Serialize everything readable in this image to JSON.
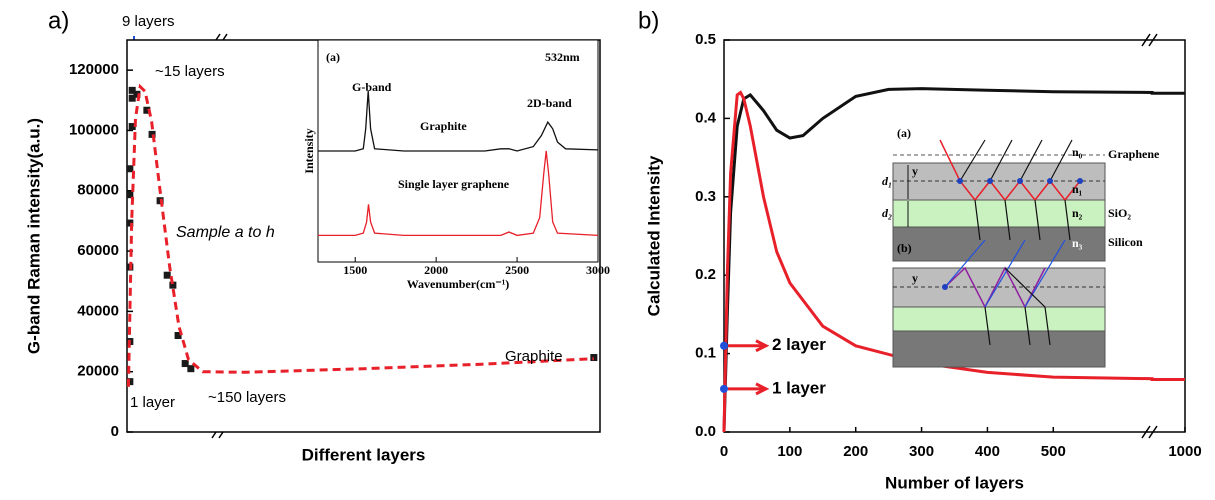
{
  "chart_data": [
    {
      "type": "scatter",
      "panel_label": "a)",
      "ylabel": "G-band Raman intensity(a.u.)",
      "xlabel": "Different layers",
      "xlim": [
        0,
        100
      ],
      "ylim": [
        0,
        130000
      ],
      "yticks": [
        0,
        20000,
        40000,
        60000,
        80000,
        100000,
        120000
      ],
      "series": [
        {
          "mode": "markers",
          "color": "#1a1a1a",
          "x": [
            0.6,
            0.6,
            0.6,
            0.6,
            0.6,
            0.6,
            1.1,
            1.1,
            1.1,
            2.1,
            4.2,
            5.3,
            7.0,
            8.5,
            9.7,
            10.8,
            12.3,
            13.5,
            98.7
          ],
          "values": [
            16700,
            30000,
            54700,
            69300,
            78700,
            87300,
            101300,
            110700,
            113300,
            112000,
            106700,
            98700,
            76700,
            52000,
            48700,
            32000,
            22700,
            21000,
            24700
          ]
        },
        {
          "mode": "line",
          "style": "dashed",
          "color": "#e8202a",
          "x": [
            0.3,
            1.0,
            1.8,
            2.8,
            3.8,
            5.2,
            7.0,
            9.0,
            11.0,
            13.0,
            16.0,
            25.0,
            50.0,
            75.0,
            98.7
          ],
          "values": [
            15000,
            70000,
            104000,
            114500,
            113000,
            103000,
            80000,
            55000,
            35000,
            24000,
            20000,
            19800,
            21000,
            22500,
            24300
          ]
        }
      ],
      "annotations": [
        "9 layers",
        "~15 layers",
        "Sample a to h",
        "1 layer",
        "~150 layers",
        "Graphite"
      ]
    },
    {
      "type": "line",
      "title": "(a)",
      "xlabel": "Wavenumber(cm⁻¹)",
      "ylabel": "Intensity",
      "xlim": [
        1270,
        3000
      ],
      "xticks": [
        1500,
        2000,
        2500,
        3000
      ],
      "ylim": [
        0,
        1
      ],
      "series": [
        {
          "color": "#111111",
          "x": [
            1270,
            1400,
            1500,
            1550,
            1565,
            1580,
            1595,
            1620,
            1800,
            2000,
            2300,
            2400,
            2450,
            2500,
            2600,
            2650,
            2690,
            2720,
            2750,
            2800,
            3000
          ],
          "values": [
            0.5,
            0.5,
            0.5,
            0.51,
            0.6,
            0.77,
            0.6,
            0.51,
            0.5,
            0.5,
            0.5,
            0.51,
            0.51,
            0.5,
            0.52,
            0.57,
            0.63,
            0.6,
            0.54,
            0.51,
            0.505
          ]
        },
        {
          "color": "#e8202a",
          "x": [
            1270,
            1400,
            1500,
            1550,
            1570,
            1582,
            1595,
            1620,
            1800,
            2000,
            2300,
            2400,
            2450,
            2500,
            2600,
            2640,
            2665,
            2680,
            2695,
            2720,
            2750,
            3000
          ],
          "values": [
            0.12,
            0.12,
            0.12,
            0.13,
            0.18,
            0.26,
            0.18,
            0.13,
            0.12,
            0.12,
            0.12,
            0.12,
            0.135,
            0.12,
            0.13,
            0.2,
            0.4,
            0.5,
            0.4,
            0.18,
            0.13,
            0.12
          ]
        }
      ],
      "annotations": [
        "532nm",
        "G-band",
        "Graphite",
        "2D-band",
        "Single layer graphene"
      ]
    },
    {
      "type": "line",
      "panel_label": "b)",
      "xlabel": "Number of layers",
      "ylabel": "Calculated Intensity",
      "xlim": [
        0,
        1000
      ],
      "x_break": [
        650,
        950
      ],
      "xticks": [
        0,
        100,
        200,
        300,
        400,
        500,
        1000
      ],
      "ylim": [
        0,
        0.5
      ],
      "yticks": [
        {
          "value": 0,
          "label": "0.0"
        },
        0.1,
        0.2,
        0.3,
        0.4,
        0.5
      ],
      "series": [
        {
          "color": "#111111",
          "x": [
            0,
            5,
            10,
            20,
            30,
            40,
            60,
            80,
            100,
            120,
            150,
            200,
            250,
            300,
            400,
            500,
            650,
            950,
            1000
          ],
          "values": [
            0,
            0.15,
            0.28,
            0.39,
            0.425,
            0.43,
            0.41,
            0.385,
            0.375,
            0.378,
            0.4,
            0.428,
            0.437,
            0.438,
            0.436,
            0.434,
            0.433,
            0.432,
            0.432
          ]
        },
        {
          "color": "#e8202a",
          "x": [
            0,
            5,
            10,
            20,
            25,
            30,
            40,
            60,
            80,
            100,
            150,
            200,
            300,
            400,
            500,
            650,
            950,
            1000
          ],
          "values": [
            0,
            0.2,
            0.33,
            0.43,
            0.433,
            0.425,
            0.39,
            0.3,
            0.23,
            0.19,
            0.135,
            0.11,
            0.088,
            0.076,
            0.07,
            0.068,
            0.067,
            0.067
          ]
        }
      ],
      "markers": [
        {
          "name": "2 layer",
          "x": 0,
          "value": 0.11,
          "color": "#2050d8"
        },
        {
          "name": "1 layer",
          "x": 0,
          "value": 0.055,
          "color": "#2050d8"
        }
      ],
      "inset_labels": [
        "(a)",
        "n₀",
        "Graphene",
        "n₁",
        "n₂",
        "SiO₂",
        "n₃",
        "Silicon",
        "d₁",
        "d₂",
        "y",
        "(b)",
        "y"
      ]
    }
  ]
}
